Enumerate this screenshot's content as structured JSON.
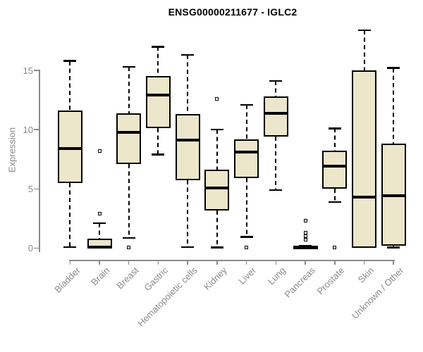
{
  "chart_data": {
    "type": "boxplot",
    "title": "ENSG00000211677 - IGLC2",
    "ylabel": "Expression",
    "xlabel": "",
    "yticks": [
      0,
      5,
      10,
      15
    ],
    "ylim": [
      0,
      18.6
    ],
    "grid": false,
    "legend": "none",
    "categories": [
      "Bladder",
      "Brain",
      "Breast",
      "Gastric",
      "Hematopoietic cells",
      "Kidney",
      "Liver",
      "Lung",
      "Pancreas",
      "Prostate",
      "Skin",
      "Unknown / Other"
    ],
    "series": [
      {
        "category": "Bladder",
        "low": 0.1,
        "q1": 5.5,
        "median": 8.4,
        "q3": 11.6,
        "high": 15.8,
        "outliers": []
      },
      {
        "category": "Brain",
        "low": 0.0,
        "q1": 0.0,
        "median": 0.1,
        "q3": 0.8,
        "high": 2.1,
        "outliers": [
          2.9,
          8.2
        ]
      },
      {
        "category": "Breast",
        "low": 0.85,
        "q1": 7.1,
        "median": 9.8,
        "q3": 11.4,
        "high": 15.3,
        "outliers": [
          0.05
        ]
      },
      {
        "category": "Gastric",
        "low": 7.9,
        "q1": 10.1,
        "median": 12.9,
        "q3": 14.5,
        "high": 17.0,
        "outliers": []
      },
      {
        "category": "Hematopoietic cells",
        "low": 0.1,
        "q1": 5.75,
        "median": 9.1,
        "q3": 11.3,
        "high": 16.3,
        "outliers": []
      },
      {
        "category": "Kidney",
        "low": 0.05,
        "q1": 3.2,
        "median": 5.1,
        "q3": 6.6,
        "high": 10.0,
        "outliers": [
          12.6
        ]
      },
      {
        "category": "Liver",
        "low": 0.95,
        "q1": 5.9,
        "median": 8.1,
        "q3": 9.2,
        "high": 12.1,
        "outliers": [
          0.05
        ]
      },
      {
        "category": "Lung",
        "low": 4.9,
        "q1": 9.4,
        "median": 11.4,
        "q3": 12.8,
        "high": 14.1,
        "outliers": []
      },
      {
        "category": "Pancreas",
        "low": 0.0,
        "q1": 0.0,
        "median": 0.07,
        "q3": 0.15,
        "high": 0.2,
        "outliers": [
          0.7,
          1.0,
          1.3,
          2.3
        ]
      },
      {
        "category": "Prostate",
        "low": 3.9,
        "q1": 5.0,
        "median": 6.9,
        "q3": 8.2,
        "high": 10.1,
        "outliers": [
          0.05
        ]
      },
      {
        "category": "Skin",
        "low": 0.0,
        "q1": 0.0,
        "median": 4.3,
        "q3": 15.0,
        "high": 18.4,
        "outliers": []
      },
      {
        "category": "Unknown / Other",
        "low": 0.05,
        "q1": 0.2,
        "median": 4.4,
        "q3": 8.8,
        "high": 15.2,
        "outliers": []
      }
    ],
    "colors": {
      "box_fill": "#ECE6CB",
      "box_border": "#000000",
      "median": "#000000",
      "whisker": "#000000",
      "axis": "#8A8A8A",
      "tick_label": "#8A8A8A",
      "title": "#000000",
      "background": "#FFFFFF"
    }
  }
}
